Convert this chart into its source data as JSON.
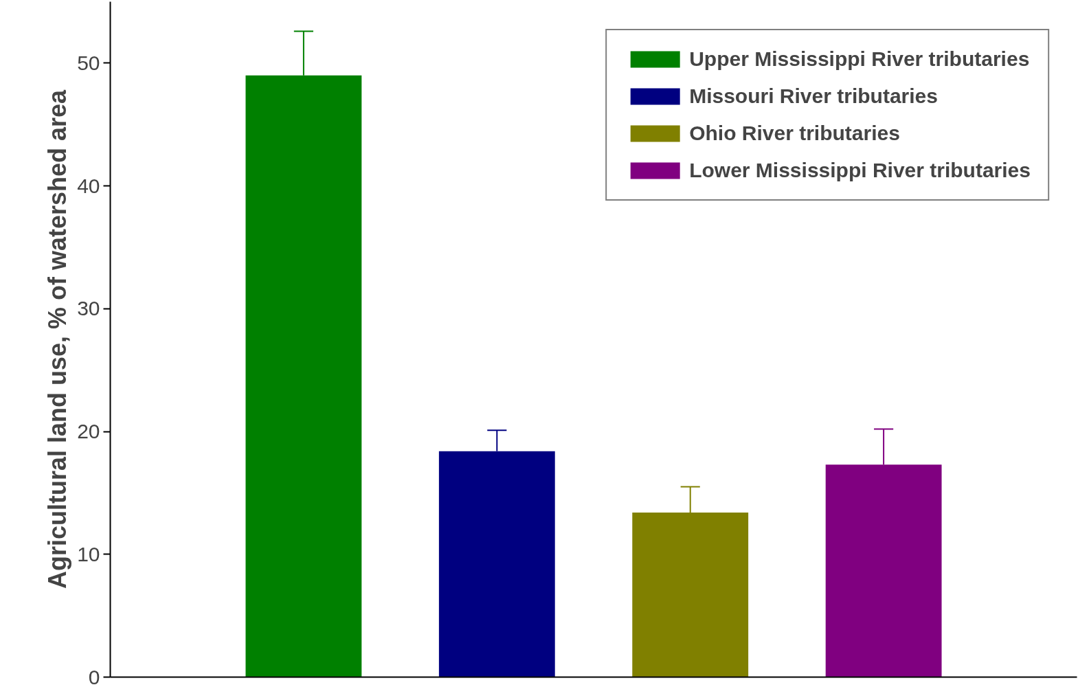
{
  "chart_data": {
    "type": "bar",
    "ylabel": "Agricultural land use, % of watershed area",
    "categories": [
      null,
      null,
      null,
      null
    ],
    "series": [
      {
        "name": "Upper Mississippi River tributaries",
        "color": "#008000",
        "values": [
          49.0,
          null,
          null,
          null
        ],
        "errors": [
          [
            49.0,
            52.6
          ],
          null,
          null,
          null
        ]
      },
      {
        "name": "Missouri River tributaries",
        "color": "#000080",
        "values": [
          null,
          18.4,
          null,
          null
        ],
        "errors": [
          null,
          [
            18.4,
            20.1
          ],
          null,
          null
        ]
      },
      {
        "name": "Ohio River tributaries",
        "color": "#808000",
        "values": [
          null,
          null,
          13.4,
          null
        ],
        "errors": [
          null,
          null,
          [
            13.4,
            15.5
          ],
          null
        ]
      },
      {
        "name": "Lower Mississippi River tributaries",
        "color": "#800080",
        "values": [
          null,
          null,
          null,
          17.3
        ],
        "errors": [
          null,
          null,
          null,
          [
            17.3,
            20.2
          ]
        ]
      }
    ],
    "ylim": [
      0,
      55
    ],
    "yticks": [
      0,
      10,
      20,
      30,
      40,
      50
    ],
    "grid": false,
    "legend": "top right",
    "tick_labels": "y"
  }
}
